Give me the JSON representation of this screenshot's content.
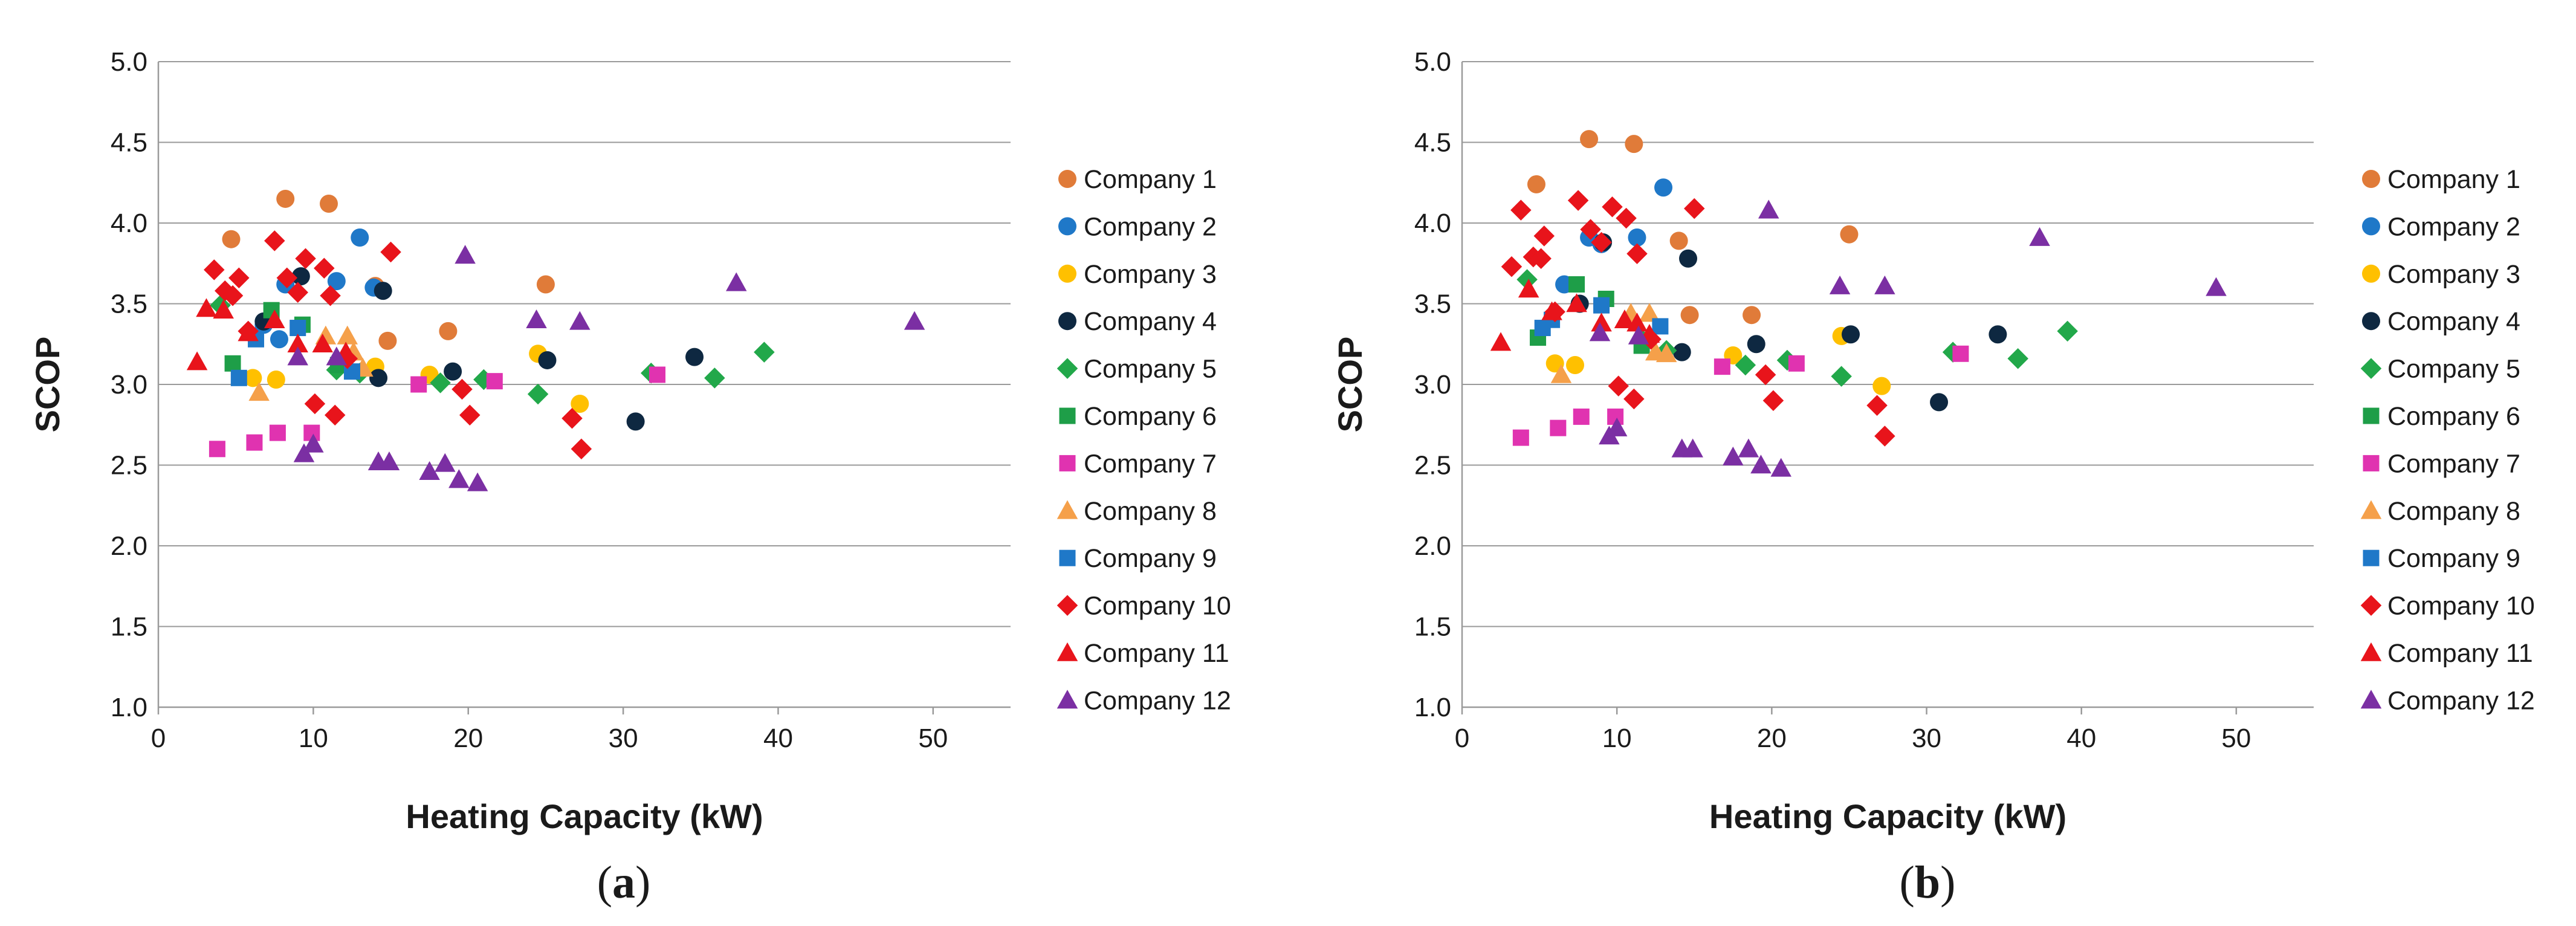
{
  "figure": {
    "panel_labels": [
      "(a)",
      "(b)"
    ]
  },
  "colors": {
    "Company 1": "#E07B39",
    "Company 2": "#1F78C8",
    "Company 3": "#FFC000",
    "Company 4": "#0E2841",
    "Company 5": "#22A84A",
    "Company 6": "#1E9E48",
    "Company 7": "#E033B0",
    "Company 8": "#F5A04A",
    "Company 9": "#1F78C8",
    "Company 10": "#E8141B",
    "Company 11": "#E8141B",
    "Company 12": "#7B2FA3",
    "grid": "#9a9a9a"
  },
  "chart_data": [
    {
      "type": "scatter",
      "panel": "(a)",
      "xlabel": "Heating Capacity (kW)",
      "ylabel": "SCOP",
      "xlim": [
        0,
        55
      ],
      "ylim": [
        1.0,
        5.0
      ],
      "xticks": [
        "0",
        "10",
        "20",
        "30",
        "40",
        "50"
      ],
      "yticks": [
        "1.0",
        "1.5",
        "2.0",
        "2.5",
        "3.0",
        "3.5",
        "4.0",
        "4.5",
        "5.0"
      ],
      "grid": "horizontal",
      "legend": "right",
      "series": [
        {
          "name": "Company 1",
          "marker": "circle",
          "points": [
            [
              4.7,
              3.9
            ],
            [
              8.2,
              4.15
            ],
            [
              11,
              4.12
            ],
            [
              14,
              3.61
            ],
            [
              14.8,
              3.27
            ],
            [
              18.7,
              3.33
            ],
            [
              25,
              3.62
            ]
          ]
        },
        {
          "name": "Company 2",
          "marker": "circle",
          "points": [
            [
              6.8,
              3.37
            ],
            [
              7.8,
              3.28
            ],
            [
              8.2,
              3.62
            ],
            [
              11.5,
              3.64
            ],
            [
              13,
              3.91
            ],
            [
              13.9,
              3.6
            ]
          ]
        },
        {
          "name": "Company 3",
          "marker": "circle",
          "points": [
            [
              6.1,
              3.04
            ],
            [
              7.6,
              3.03
            ],
            [
              14,
              3.11
            ],
            [
              17.5,
              3.06
            ],
            [
              24.5,
              3.19
            ],
            [
              27.2,
              2.88
            ]
          ]
        },
        {
          "name": "Company 4",
          "marker": "circle",
          "points": [
            [
              6.8,
              3.39
            ],
            [
              9.2,
              3.67
            ],
            [
              14.2,
              3.04
            ],
            [
              14.5,
              3.58
            ],
            [
              19,
              3.08
            ],
            [
              25.1,
              3.15
            ],
            [
              30.8,
              2.77
            ],
            [
              34.6,
              3.17
            ]
          ]
        },
        {
          "name": "Company 5",
          "marker": "diamond",
          "points": [
            [
              4,
              3.49
            ],
            [
              11.5,
              3.09
            ],
            [
              13,
              3.07
            ],
            [
              18.2,
              3.01
            ],
            [
              21,
              3.03
            ],
            [
              24.5,
              2.94
            ],
            [
              31.8,
              3.07
            ],
            [
              35.9,
              3.04
            ],
            [
              39.1,
              3.2
            ]
          ]
        },
        {
          "name": "Company 6",
          "marker": "square",
          "points": [
            [
              4.8,
              3.13
            ],
            [
              7.3,
              3.46
            ],
            [
              9.3,
              3.37
            ],
            [
              11.6,
              3.12
            ]
          ]
        },
        {
          "name": "Company 7",
          "marker": "square",
          "points": [
            [
              3.8,
              2.6
            ],
            [
              6.2,
              2.64
            ],
            [
              7.7,
              2.7
            ],
            [
              9.9,
              2.7
            ],
            [
              16.8,
              3.0
            ],
            [
              21.7,
              3.02
            ],
            [
              32.2,
              3.06
            ]
          ]
        },
        {
          "name": "Company 8",
          "marker": "triangle",
          "points": [
            [
              6.5,
              2.95
            ],
            [
              10.8,
              3.3
            ],
            [
              12.2,
              3.3
            ],
            [
              12.6,
              3.2
            ],
            [
              13.2,
              3.1
            ]
          ]
        },
        {
          "name": "Company 9",
          "marker": "square",
          "points": [
            [
              5.2,
              3.04
            ],
            [
              6.3,
              3.28
            ],
            [
              9,
              3.35
            ],
            [
              12.5,
              3.08
            ]
          ]
        },
        {
          "name": "Company 10",
          "marker": "diamond",
          "points": [
            [
              3.6,
              3.71
            ],
            [
              4.3,
              3.58
            ],
            [
              4.8,
              3.55
            ],
            [
              5.2,
              3.66
            ],
            [
              5.8,
              3.33
            ],
            [
              7.5,
              3.89
            ],
            [
              8.3,
              3.66
            ],
            [
              9,
              3.57
            ],
            [
              9.5,
              3.78
            ],
            [
              10.1,
              2.88
            ],
            [
              10.7,
              3.72
            ],
            [
              11.1,
              3.55
            ],
            [
              11.4,
              2.81
            ],
            [
              12.2,
              3.16
            ],
            [
              15,
              3.82
            ],
            [
              19.6,
              2.97
            ],
            [
              20.1,
              2.81
            ],
            [
              26.7,
              2.79
            ],
            [
              27.3,
              2.6
            ]
          ]
        },
        {
          "name": "Company 11",
          "marker": "triangle",
          "points": [
            [
              2.5,
              3.14
            ],
            [
              3.1,
              3.47
            ],
            [
              4.2,
              3.46
            ],
            [
              5.8,
              3.32
            ],
            [
              7.5,
              3.4
            ],
            [
              9,
              3.25
            ],
            [
              10.6,
              3.25
            ],
            [
              12.1,
              3.2
            ]
          ]
        },
        {
          "name": "Company 12",
          "marker": "triangle",
          "points": [
            [
              9,
              3.17
            ],
            [
              9.4,
              2.57
            ],
            [
              10,
              2.63
            ],
            [
              11.5,
              3.17
            ],
            [
              14.2,
              2.52
            ],
            [
              14.9,
              2.52
            ],
            [
              17.5,
              2.46
            ],
            [
              18.5,
              2.51
            ],
            [
              19.4,
              2.41
            ],
            [
              20.6,
              2.39
            ],
            [
              19.8,
              3.8
            ],
            [
              24.4,
              3.4
            ],
            [
              27.2,
              3.39
            ],
            [
              37.3,
              3.63
            ],
            [
              48.8,
              3.39
            ]
          ]
        }
      ]
    },
    {
      "type": "scatter",
      "panel": "(b)",
      "xlabel": "Heating Capacity (kW)",
      "ylabel": "SCOP",
      "xlim": [
        0,
        55
      ],
      "ylim": [
        1.0,
        5.0
      ],
      "xticks": [
        "0",
        "10",
        "20",
        "30",
        "40",
        "50"
      ],
      "yticks": [
        "1.0",
        "1.5",
        "2.0",
        "2.5",
        "3.0",
        "3.5",
        "4.0",
        "4.5",
        "5.0"
      ],
      "grid": "horizontal",
      "legend": "right",
      "series": [
        {
          "name": "Company 1",
          "marker": "circle",
          "points": [
            [
              4.8,
              4.24
            ],
            [
              8.2,
              4.52
            ],
            [
              11.1,
              4.49
            ],
            [
              14,
              3.89
            ],
            [
              14.7,
              3.43
            ],
            [
              18.7,
              3.43
            ],
            [
              25,
              3.93
            ]
          ]
        },
        {
          "name": "Company 2",
          "marker": "circle",
          "points": [
            [
              6.6,
              3.62
            ],
            [
              8.2,
              3.91
            ],
            [
              11.3,
              3.91
            ],
            [
              13,
              4.22
            ],
            [
              9,
              3.87
            ]
          ]
        },
        {
          "name": "Company 3",
          "marker": "circle",
          "points": [
            [
              6,
              3.13
            ],
            [
              7.3,
              3.12
            ],
            [
              17.5,
              3.18
            ],
            [
              24.5,
              3.3
            ],
            [
              27.1,
              2.99
            ]
          ]
        },
        {
          "name": "Company 4",
          "marker": "circle",
          "points": [
            [
              7.6,
              3.5
            ],
            [
              9.1,
              3.88
            ],
            [
              14.2,
              3.2
            ],
            [
              14.6,
              3.78
            ],
            [
              19,
              3.25
            ],
            [
              25.1,
              3.31
            ],
            [
              30.8,
              2.89
            ],
            [
              34.6,
              3.31
            ]
          ]
        },
        {
          "name": "Company 5",
          "marker": "diamond",
          "points": [
            [
              4.2,
              3.65
            ],
            [
              11.6,
              3.28
            ],
            [
              13.2,
              3.21
            ],
            [
              18.3,
              3.12
            ],
            [
              21,
              3.15
            ],
            [
              24.5,
              3.05
            ],
            [
              31.7,
              3.2
            ],
            [
              35.9,
              3.16
            ],
            [
              39.1,
              3.33
            ]
          ]
        },
        {
          "name": "Company 6",
          "marker": "square",
          "points": [
            [
              4.9,
              3.29
            ],
            [
              7.4,
              3.62
            ],
            [
              9.3,
              3.53
            ],
            [
              11.6,
              3.24
            ]
          ]
        },
        {
          "name": "Company 7",
          "marker": "square",
          "points": [
            [
              3.8,
              2.67
            ],
            [
              6.2,
              2.73
            ],
            [
              7.7,
              2.8
            ],
            [
              9.9,
              2.8
            ],
            [
              16.8,
              3.11
            ],
            [
              21.6,
              3.13
            ],
            [
              32.2,
              3.19
            ]
          ]
        },
        {
          "name": "Company 8",
          "marker": "triangle",
          "points": [
            [
              6.4,
              3.06
            ],
            [
              10.9,
              3.44
            ],
            [
              12.1,
              3.44
            ],
            [
              12.5,
              3.2
            ],
            [
              13.2,
              3.19
            ]
          ]
        },
        {
          "name": "Company 9",
          "marker": "square",
          "points": [
            [
              5.2,
              3.35
            ],
            [
              5.8,
              3.4
            ],
            [
              9,
              3.49
            ],
            [
              12.8,
              3.36
            ]
          ]
        },
        {
          "name": "Company 10",
          "marker": "diamond",
          "points": [
            [
              3.2,
              3.73
            ],
            [
              3.8,
              4.08
            ],
            [
              4.6,
              3.79
            ],
            [
              5.1,
              3.78
            ],
            [
              5.3,
              3.92
            ],
            [
              6,
              3.45
            ],
            [
              7.5,
              4.14
            ],
            [
              8.3,
              3.96
            ],
            [
              9,
              3.88
            ],
            [
              9.7,
              4.1
            ],
            [
              10.1,
              2.99
            ],
            [
              10.6,
              4.03
            ],
            [
              11.1,
              2.91
            ],
            [
              11.3,
              3.81
            ],
            [
              12.2,
              3.28
            ],
            [
              15,
              4.09
            ],
            [
              19.6,
              3.06
            ],
            [
              20.1,
              2.9
            ],
            [
              26.8,
              2.87
            ],
            [
              27.3,
              2.68
            ]
          ]
        },
        {
          "name": "Company 11",
          "marker": "triangle",
          "points": [
            [
              2.5,
              3.26
            ],
            [
              4.3,
              3.59
            ],
            [
              5.8,
              3.45
            ],
            [
              7.4,
              3.5
            ],
            [
              9,
              3.38
            ],
            [
              10.5,
              3.4
            ],
            [
              11.3,
              3.38
            ],
            [
              12.1,
              3.31
            ]
          ]
        },
        {
          "name": "Company 12",
          "marker": "triangle",
          "points": [
            [
              8.9,
              3.32
            ],
            [
              9.5,
              2.68
            ],
            [
              10,
              2.73
            ],
            [
              11.4,
              3.3
            ],
            [
              14.2,
              2.6
            ],
            [
              14.9,
              2.6
            ],
            [
              17.5,
              2.55
            ],
            [
              18.5,
              2.6
            ],
            [
              19.3,
              2.5
            ],
            [
              20.6,
              2.48
            ],
            [
              19.8,
              4.08
            ],
            [
              24.4,
              3.61
            ],
            [
              27.3,
              3.61
            ],
            [
              37.3,
              3.91
            ],
            [
              48.7,
              3.6
            ]
          ]
        }
      ]
    }
  ]
}
